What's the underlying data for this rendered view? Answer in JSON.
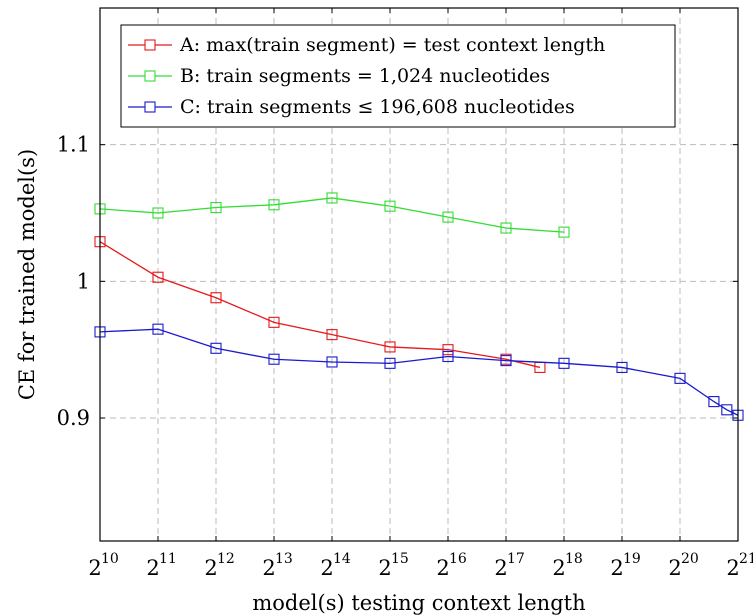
{
  "chart_data": {
    "type": "line",
    "title": "",
    "xlabel": "model(s) testing context length",
    "ylabel": "CE for trained model(s)",
    "x_scale": "log2",
    "x_ticks": [
      {
        "base": "2",
        "exp": "10"
      },
      {
        "base": "2",
        "exp": "11"
      },
      {
        "base": "2",
        "exp": "12"
      },
      {
        "base": "2",
        "exp": "13"
      },
      {
        "base": "2",
        "exp": "14"
      },
      {
        "base": "2",
        "exp": "15"
      },
      {
        "base": "2",
        "exp": "16"
      },
      {
        "base": "2",
        "exp": "17"
      },
      {
        "base": "2",
        "exp": "18"
      },
      {
        "base": "2",
        "exp": "19"
      },
      {
        "base": "2",
        "exp": "20"
      },
      {
        "base": "2",
        "exp": "21"
      }
    ],
    "y_ticks": [
      "0.9",
      "1",
      "1.1"
    ],
    "xlim": [
      1024,
      2097152
    ],
    "ylim": [
      0.81,
      1.2
    ],
    "grid": true,
    "legend_position": "top",
    "series": [
      {
        "name": "A: max(train segment) = test context length",
        "color": "#e41a1c",
        "marker": "square",
        "x": [
          1024,
          2048,
          4096,
          8192,
          16384,
          32768,
          65536,
          131072,
          196608
        ],
        "y": [
          1.029,
          1.003,
          0.988,
          0.97,
          0.961,
          0.952,
          0.95,
          0.943,
          0.937
        ]
      },
      {
        "name": "B: train segments = 1,024 nucleotides",
        "color": "#33dd33",
        "marker": "square",
        "x": [
          1024,
          2048,
          4096,
          8192,
          16384,
          32768,
          65536,
          131072,
          262144
        ],
        "y": [
          1.053,
          1.05,
          1.054,
          1.056,
          1.061,
          1.055,
          1.047,
          1.039,
          1.036
        ]
      },
      {
        "name": "C: train segments ≤ 196,608 nucleotides",
        "color": "#1a1acc",
        "marker": "square",
        "x": [
          1024,
          2048,
          4096,
          8192,
          16384,
          32768,
          65536,
          131072,
          262144,
          524288,
          1048576,
          1572864,
          1835008,
          2097152
        ],
        "y": [
          0.963,
          0.965,
          0.951,
          0.943,
          0.941,
          0.94,
          0.945,
          0.942,
          0.94,
          0.937,
          0.929,
          0.912,
          0.906,
          0.902
        ]
      }
    ]
  }
}
